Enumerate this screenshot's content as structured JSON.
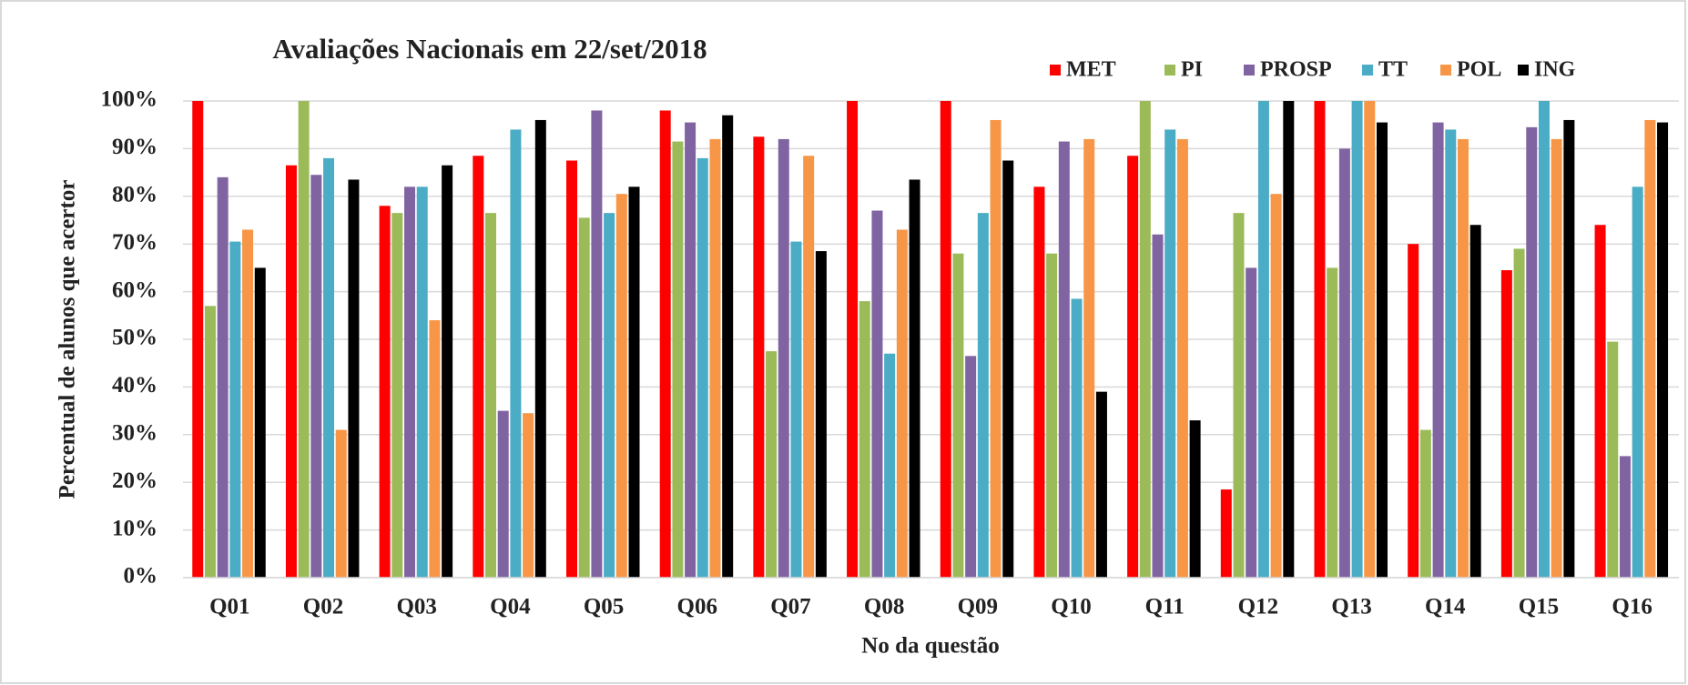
{
  "chart_data": {
    "type": "bar",
    "title": "Avaliações Nacionais em 22/set/2018",
    "x_label": "No da questão",
    "y_label": "Percentual de alunos que acertor",
    "categories": [
      "Q01",
      "Q02",
      "Q03",
      "Q04",
      "Q05",
      "Q06",
      "Q07",
      "Q08",
      "Q09",
      "Q10",
      "Q11",
      "Q12",
      "Q13",
      "Q14",
      "Q15",
      "Q16"
    ],
    "series": [
      {
        "name": "MET",
        "color": "#ff0000",
        "values": [
          100,
          86.5,
          78,
          88.5,
          87.5,
          98,
          92.5,
          100,
          100,
          82,
          88.5,
          18.5,
          100,
          70,
          64.5,
          74
        ]
      },
      {
        "name": "PI",
        "color": "#9bbb59",
        "values": [
          57,
          100,
          76.5,
          76.5,
          75.5,
          91.5,
          47.5,
          58,
          68,
          68,
          100,
          76.5,
          65,
          31,
          69,
          49.5
        ]
      },
      {
        "name": "PROSP",
        "color": "#8064a2",
        "values": [
          84,
          84.5,
          82,
          35,
          98,
          95.5,
          92,
          77,
          46.5,
          91.5,
          72,
          65,
          90,
          95.5,
          94.5,
          25.5
        ]
      },
      {
        "name": "TT",
        "color": "#4bacc6",
        "values": [
          70.5,
          88,
          82,
          94,
          76.5,
          88,
          70.5,
          47,
          76.5,
          58.5,
          94,
          100,
          100,
          94,
          100,
          82
        ]
      },
      {
        "name": "POL",
        "color": "#f79646",
        "values": [
          73,
          31,
          54,
          34.5,
          80.5,
          92,
          88.5,
          73,
          96,
          92,
          92,
          80.5,
          100,
          92,
          92,
          96
        ]
      },
      {
        "name": "ING",
        "color": "#000000",
        "values": [
          65,
          83.5,
          86.5,
          96,
          82,
          97,
          68.5,
          83.5,
          87.5,
          39,
          33,
          100,
          95.5,
          74,
          96,
          95.5
        ]
      }
    ],
    "ylim": [
      0,
      100
    ],
    "yticks": [
      {
        "value": 0,
        "label": "0%"
      },
      {
        "value": 10,
        "label": "10%"
      },
      {
        "value": 20,
        "label": "20%"
      },
      {
        "value": 30,
        "label": "30%"
      },
      {
        "value": 40,
        "label": "40%"
      },
      {
        "value": 50,
        "label": "50%"
      },
      {
        "value": 60,
        "label": "60%"
      },
      {
        "value": 70,
        "label": "70%"
      },
      {
        "value": 80,
        "label": "80%"
      },
      {
        "value": 90,
        "label": "90%"
      },
      {
        "value": 100,
        "label": "100%"
      }
    ],
    "grid": true,
    "legend": "top-right"
  }
}
